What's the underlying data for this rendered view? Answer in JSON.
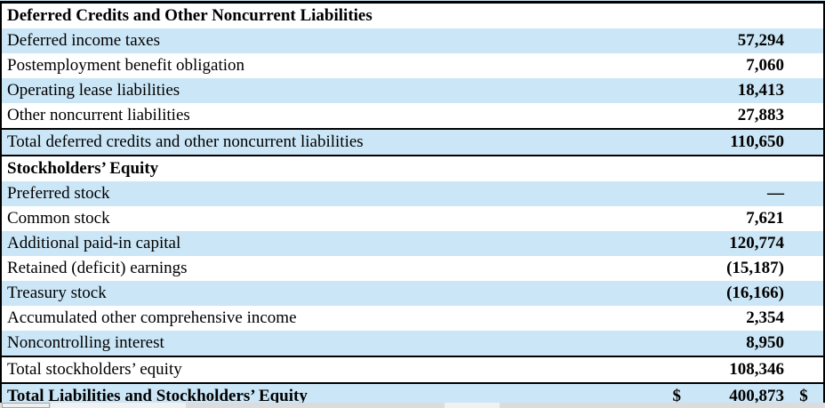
{
  "colors": {
    "row_alt_blue": "#cbe6f6",
    "border_black": "#000000",
    "scroll_strip_gray": "#dcdcdc"
  },
  "table": {
    "rows": [
      {
        "type": "section-header",
        "label": "Deferred Credits and Other Noncurrent Liabilities",
        "value": ""
      },
      {
        "type": "line-item",
        "label": "Deferred income taxes",
        "value": "57,294"
      },
      {
        "type": "line-item",
        "label": "Postemployment benefit obligation",
        "value": "7,060"
      },
      {
        "type": "line-item",
        "label": "Operating lease liabilities",
        "value": "18,413"
      },
      {
        "type": "line-item",
        "label": "Other noncurrent liabilities",
        "value": "27,883"
      },
      {
        "type": "subtotal",
        "label": "Total deferred credits and other noncurrent liabilities",
        "value": "110,650"
      },
      {
        "type": "section-header",
        "label": "Stockholders’ Equity",
        "value": ""
      },
      {
        "type": "line-item",
        "label": "Preferred stock",
        "value": "—"
      },
      {
        "type": "line-item",
        "label": "Common stock",
        "value": "7,621"
      },
      {
        "type": "line-item",
        "label": "Additional paid-in capital",
        "value": "120,774"
      },
      {
        "type": "line-item",
        "label": "Retained (deficit) earnings",
        "value": "(15,187)"
      },
      {
        "type": "line-item",
        "label": "Treasury stock",
        "value": "(16,166)"
      },
      {
        "type": "line-item",
        "label": "Accumulated other comprehensive income",
        "value": "2,354"
      },
      {
        "type": "line-item",
        "label": "Noncontrolling interest",
        "value": "8,950"
      },
      {
        "type": "subtotal",
        "label": "Total stockholders’ equity",
        "value": "108,346"
      },
      {
        "type": "grand-total",
        "label": "Total Liabilities and Stockholders’ Equity",
        "currency": "$",
        "value": "400,873",
        "trailing_currency": "$"
      }
    ]
  }
}
